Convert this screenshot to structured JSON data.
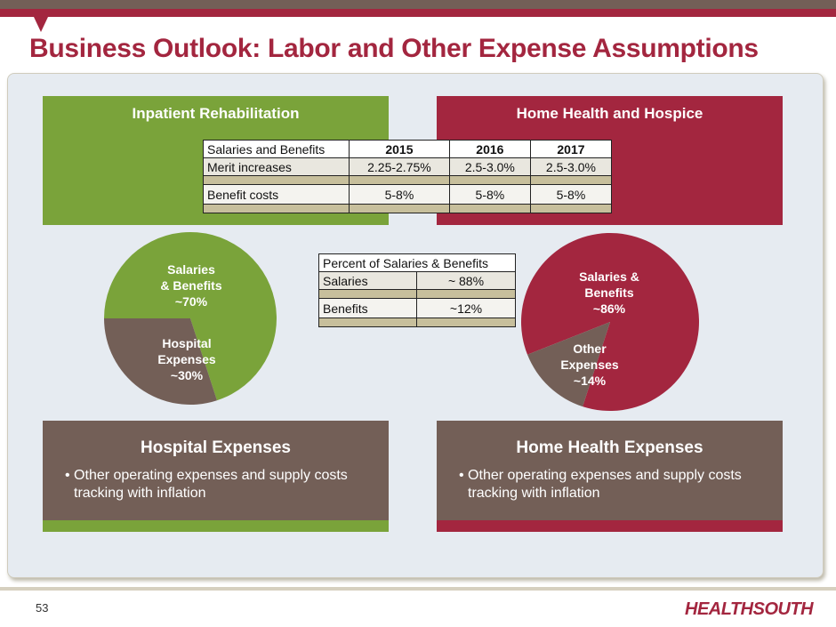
{
  "title": "Business Outlook: Labor and Other Expense Assumptions",
  "sections": {
    "inpatient": "Inpatient Rehabilitation",
    "home_health": "Home Health and Hospice"
  },
  "salaries_table": {
    "headers": [
      "Salaries and Benefits",
      "2015",
      "2016",
      "2017"
    ],
    "rows": [
      [
        "Merit increases",
        "2.25-2.75%",
        "2.5-3.0%",
        "2.5-3.0%"
      ],
      [
        "Benefit costs",
        "5-8%",
        "5-8%",
        "5-8%"
      ]
    ]
  },
  "percent_table": {
    "header": "Percent of Salaries & Benefits",
    "rows": [
      [
        "Salaries",
        "~ 88%"
      ],
      [
        "Benefits",
        "~12%"
      ]
    ]
  },
  "chart_data": [
    {
      "type": "pie",
      "title": "Inpatient Rehabilitation",
      "slices": [
        {
          "label": "Salaries & Benefits ~70%",
          "value": 70,
          "color": "#7aa33a"
        },
        {
          "label": "Hospital Expenses ~30%",
          "value": 30,
          "color": "#735f57"
        }
      ]
    },
    {
      "type": "pie",
      "title": "Home Health and Hospice",
      "slices": [
        {
          "label": "Salaries & Benefits ~86%",
          "value": 86,
          "color": "#a3263f"
        },
        {
          "label": "Other Expenses ~14%",
          "value": 14,
          "color": "#735f57"
        }
      ]
    }
  ],
  "pie_labels": {
    "p1a": [
      "Salaries",
      "& Benefits",
      "~70%"
    ],
    "p1b": [
      "Hospital",
      "Expenses",
      "~30%"
    ],
    "p2a": [
      "Salaries &",
      "Benefits",
      "~86%"
    ],
    "p2b": [
      "Other",
      "Expenses",
      "~14%"
    ]
  },
  "bottom": {
    "hospital": {
      "title": "Hospital Expenses",
      "bullet": "• Other operating expenses and supply costs tracking with inflation"
    },
    "home_health": {
      "title": "Home Health Expenses",
      "bullet": "• Other operating expenses and supply costs tracking with inflation"
    }
  },
  "page_number": "53",
  "logo": "HEALTHSOUTH"
}
